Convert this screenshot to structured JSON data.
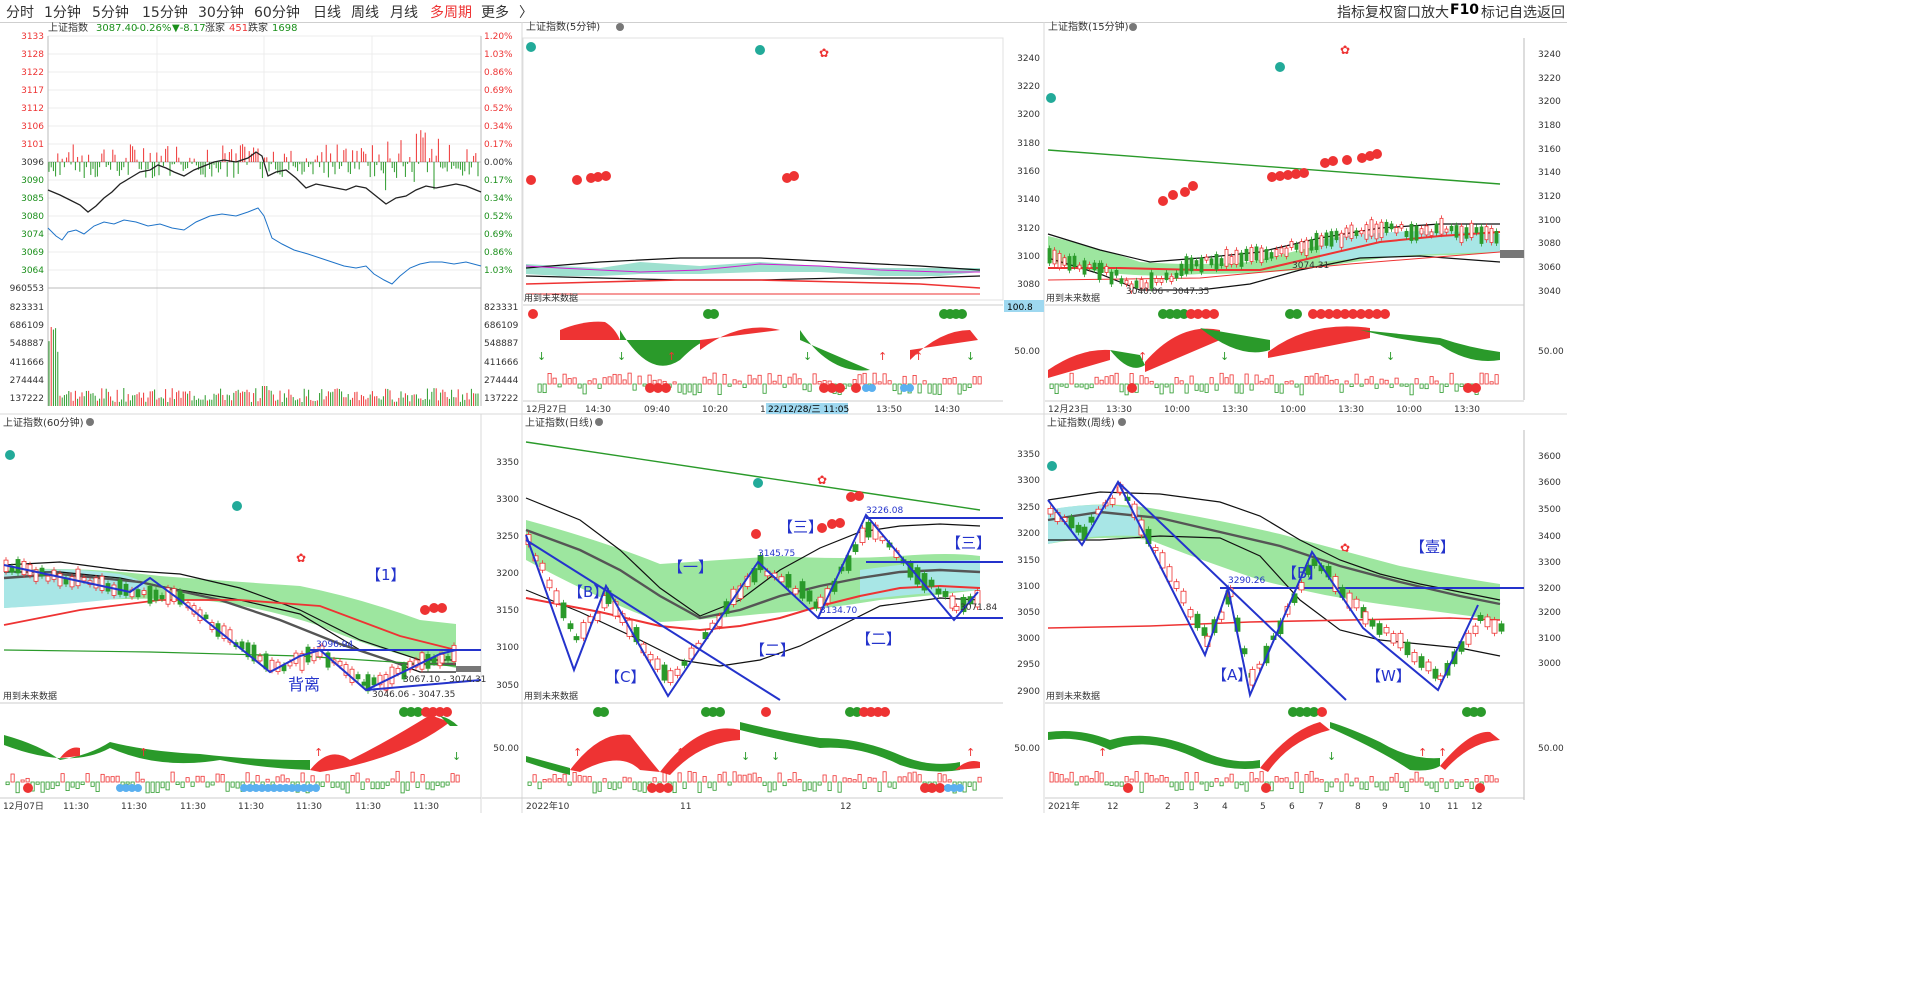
{
  "toolbar": {
    "periods": [
      "分时",
      "1分钟",
      "5分钟",
      "15分钟",
      "30分钟",
      "60分钟",
      "日线",
      "周线",
      "月线",
      "多周期",
      "更多"
    ],
    "active": "多周期",
    "right_items": [
      "指标",
      "复权",
      "窗口",
      "放大",
      "F10",
      "标记",
      "自选",
      "返回"
    ]
  },
  "panels": {
    "p1": {
      "title": "上证指数",
      "quote": "3087.40",
      "change": "-0.26%",
      "change_abs": "▼-8.17",
      "up_label": "涨家",
      "up_count": "451",
      "down_label": "跌家",
      "down_count": "1698",
      "price_left": [
        "3133",
        "3128",
        "3122",
        "3117",
        "3112",
        "3106",
        "3101",
        "3096",
        "3090",
        "3085",
        "3080",
        "3074",
        "3069",
        "3064"
      ],
      "pct_right": [
        "1.20%",
        "1.03%",
        "0.86%",
        "0.69%",
        "0.52%",
        "0.34%",
        "0.17%",
        "0.00%",
        "0.17%",
        "0.34%",
        "0.52%",
        "0.69%",
        "0.86%",
        "1.03%"
      ],
      "vol_labels": [
        "960553",
        "823331",
        "686109",
        "548887",
        "411666",
        "274444",
        "137222"
      ]
    },
    "p2": {
      "title": "上证指数(5分钟)",
      "hint": "用到未来数据",
      "time_labels": [
        "12月27日",
        "14:30",
        "09:40",
        "10:20",
        "11",
        "13:50",
        "14:30"
      ],
      "cursor_time": "22/12/28/三 11:05",
      "cursor_value": "100.8"
    },
    "p3": {
      "title": "上证指数(15分钟)",
      "hint": "用到未来数据",
      "y_left": [
        "3240",
        "3220",
        "3200",
        "3180",
        "3160",
        "3140",
        "3120",
        "3100",
        "3080"
      ],
      "y_right": [
        "3240",
        "3220",
        "3200",
        "3180",
        "3160",
        "3140",
        "3120",
        "3100",
        "3080",
        "3060",
        "3040"
      ],
      "osc_label": "50.00",
      "annot": [
        "3040.06 - 3047.35",
        "3074.31"
      ],
      "time_labels": [
        "12月23日",
        "13:30",
        "10:00",
        "13:30",
        "10:00",
        "13:30",
        "10:00",
        "13:30"
      ]
    },
    "p4": {
      "title": "上证指数(60分钟)",
      "hint": "用到未来数据",
      "annot_hi": "3096.94",
      "annot_range": "3067.10 - 3074.31",
      "annot_low": "3046.06 - 3047.35",
      "label_back": "背离",
      "label_1": "【1】",
      "time_labels": [
        "12月07日",
        "11:30",
        "11:30",
        "11:30",
        "11:30",
        "11:30",
        "11:30",
        "11:30"
      ]
    },
    "p5": {
      "title": "上证指数(日线)",
      "hint": "用到未来数据",
      "y_left": [
        "3350",
        "3300",
        "3250",
        "3200",
        "3150",
        "3100",
        "3050"
      ],
      "osc_label": "50.00",
      "annot": [
        "3226.08",
        "3145.75",
        "3134.70",
        "3071.84"
      ],
      "waves": [
        "【B】",
        "【C】",
        "【一】",
        "【二】",
        "【三】",
        "【二】",
        "【三】"
      ],
      "time_labels": [
        "2022年10",
        "11",
        "12"
      ]
    },
    "p6": {
      "title": "上证指数(周线)",
      "hint": "用到未来数据",
      "y_left": [
        "3350",
        "3300",
        "3250",
        "3200",
        "3150",
        "3100",
        "3050",
        "3000",
        "2950",
        "2900"
      ],
      "y_right": [
        "3600",
        "3500",
        "3400",
        "3300",
        "3200",
        "3100",
        "3000"
      ],
      "osc_label": "50.00",
      "annot": [
        "3290.26"
      ],
      "waves": [
        "【B】",
        "【A】",
        "【W】",
        "【壹】"
      ],
      "time_labels": [
        "2021年",
        "12",
        "2",
        "3",
        "4",
        "5",
        "6",
        "7",
        "8",
        "9",
        "10",
        "11",
        "12"
      ]
    }
  }
}
